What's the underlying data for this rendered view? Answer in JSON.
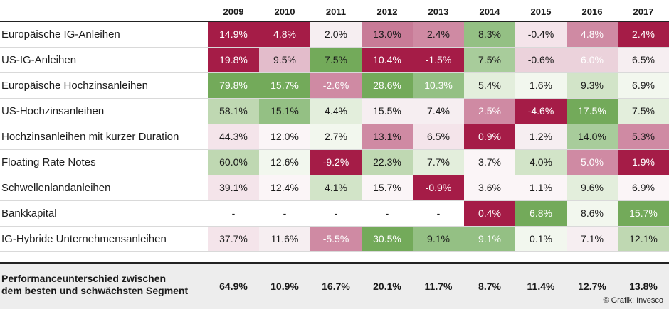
{
  "chart_data": {
    "type": "table",
    "columns": [
      "2009",
      "2010",
      "2011",
      "2012",
      "2013",
      "2014",
      "2015",
      "2016",
      "2017"
    ],
    "rows": [
      {
        "label": "Europäische IG-Anleihen",
        "cells": [
          {
            "text": "14.9%",
            "bg": "#a51c47",
            "fg": "#ffffff"
          },
          {
            "text": "4.8%",
            "bg": "#a51c47",
            "fg": "#ffffff"
          },
          {
            "text": "2.0%",
            "bg": "#f6eef1",
            "fg": "#1a1a1a"
          },
          {
            "text": "13.0%",
            "bg": "#c87b97",
            "fg": "#1a1a1a"
          },
          {
            "text": "2.4%",
            "bg": "#cf8aa3",
            "fg": "#1a1a1a"
          },
          {
            "text": "8.3%",
            "bg": "#94c084",
            "fg": "#1a1a1a"
          },
          {
            "text": "-0.4%",
            "bg": "#f4e4ea",
            "fg": "#1a1a1a"
          },
          {
            "text": "4.8%",
            "bg": "#cf8aa3",
            "fg": "#ffffff"
          },
          {
            "text": "2.4%",
            "bg": "#a51c47",
            "fg": "#ffffff"
          }
        ]
      },
      {
        "label": "US-IG-Anleihen",
        "cells": [
          {
            "text": "19.8%",
            "bg": "#a51c47",
            "fg": "#ffffff"
          },
          {
            "text": "9.5%",
            "bg": "#e3bccb",
            "fg": "#1a1a1a"
          },
          {
            "text": "7.5%",
            "bg": "#73aa5a",
            "fg": "#1a1a1a"
          },
          {
            "text": "10.4%",
            "bg": "#a51c47",
            "fg": "#ffffff"
          },
          {
            "text": "-1.5%",
            "bg": "#a51c47",
            "fg": "#ffffff"
          },
          {
            "text": "7.5%",
            "bg": "#a8cc9b",
            "fg": "#1a1a1a"
          },
          {
            "text": "-0.6%",
            "bg": "#ebd2db",
            "fg": "#1a1a1a"
          },
          {
            "text": "6.0%",
            "bg": "#ebd2db",
            "fg": "#ffffff"
          },
          {
            "text": "6.5%",
            "bg": "#f6eef1",
            "fg": "#1a1a1a"
          }
        ]
      },
      {
        "label": "Europäische Hochzinsanleihen",
        "cells": [
          {
            "text": "79.8%",
            "bg": "#73aa5a",
            "fg": "#ffffff"
          },
          {
            "text": "15.7%",
            "bg": "#73aa5a",
            "fg": "#ffffff"
          },
          {
            "text": "-2.6%",
            "bg": "#cf8aa3",
            "fg": "#ffffff"
          },
          {
            "text": "28.6%",
            "bg": "#73aa5a",
            "fg": "#ffffff"
          },
          {
            "text": "10.3%",
            "bg": "#94c084",
            "fg": "#ffffff"
          },
          {
            "text": "5.4%",
            "bg": "#e3eedc",
            "fg": "#1a1a1a"
          },
          {
            "text": "1.6%",
            "bg": "#f2f7ee",
            "fg": "#1a1a1a"
          },
          {
            "text": "9.3%",
            "bg": "#d2e4c8",
            "fg": "#1a1a1a"
          },
          {
            "text": "6.9%",
            "bg": "#f2f7ee",
            "fg": "#1a1a1a"
          }
        ]
      },
      {
        "label": "US-Hochzinsanleihen",
        "cells": [
          {
            "text": "58.1%",
            "bg": "#bfd8b2",
            "fg": "#1a1a1a"
          },
          {
            "text": "15.1%",
            "bg": "#94c084",
            "fg": "#1a1a1a"
          },
          {
            "text": "4.4%",
            "bg": "#e3eedc",
            "fg": "#1a1a1a"
          },
          {
            "text": "15.5%",
            "bg": "#f6eef1",
            "fg": "#1a1a1a"
          },
          {
            "text": "7.4%",
            "bg": "#f6eef1",
            "fg": "#1a1a1a"
          },
          {
            "text": "2.5%",
            "bg": "#cf8aa3",
            "fg": "#ffffff"
          },
          {
            "text": "-4.6%",
            "bg": "#a51c47",
            "fg": "#ffffff"
          },
          {
            "text": "17.5%",
            "bg": "#73aa5a",
            "fg": "#ffffff"
          },
          {
            "text": "7.5%",
            "bg": "#e3eedc",
            "fg": "#1a1a1a"
          }
        ]
      },
      {
        "label": "Hochzinsanleihen mit kurzer Duration",
        "cells": [
          {
            "text": "44.3%",
            "bg": "#f4e4ea",
            "fg": "#1a1a1a"
          },
          {
            "text": "12.0%",
            "bg": "#fbf5f7",
            "fg": "#1a1a1a"
          },
          {
            "text": "2.7%",
            "bg": "#f2f7ee",
            "fg": "#1a1a1a"
          },
          {
            "text": "13.1%",
            "bg": "#cf8aa3",
            "fg": "#1a1a1a"
          },
          {
            "text": "6.5%",
            "bg": "#f4e4ea",
            "fg": "#1a1a1a"
          },
          {
            "text": "0.9%",
            "bg": "#a51c47",
            "fg": "#ffffff"
          },
          {
            "text": "1.2%",
            "bg": "#f6eef1",
            "fg": "#1a1a1a"
          },
          {
            "text": "14.0%",
            "bg": "#a8cc9b",
            "fg": "#1a1a1a"
          },
          {
            "text": "5.3%",
            "bg": "#cf8aa3",
            "fg": "#1a1a1a"
          }
        ]
      },
      {
        "label": "Floating Rate Notes",
        "cells": [
          {
            "text": "60.0%",
            "bg": "#bfd8b2",
            "fg": "#1a1a1a"
          },
          {
            "text": "12.6%",
            "bg": "#f2f7ee",
            "fg": "#1a1a1a"
          },
          {
            "text": "-9.2%",
            "bg": "#a51c47",
            "fg": "#ffffff"
          },
          {
            "text": "22.3%",
            "bg": "#bfd8b2",
            "fg": "#1a1a1a"
          },
          {
            "text": "7.7%",
            "bg": "#e3eedc",
            "fg": "#1a1a1a"
          },
          {
            "text": "3.7%",
            "bg": "#fbf5f7",
            "fg": "#1a1a1a"
          },
          {
            "text": "4.0%",
            "bg": "#d2e4c8",
            "fg": "#1a1a1a"
          },
          {
            "text": "5.0%",
            "bg": "#cf8aa3",
            "fg": "#ffffff"
          },
          {
            "text": "1.9%",
            "bg": "#a51c47",
            "fg": "#ffffff"
          }
        ]
      },
      {
        "label": "Schwellenlandanleihen",
        "cells": [
          {
            "text": "39.1%",
            "bg": "#f4e4ea",
            "fg": "#1a1a1a"
          },
          {
            "text": "12.4%",
            "bg": "#fbf5f7",
            "fg": "#1a1a1a"
          },
          {
            "text": "4.1%",
            "bg": "#d2e4c8",
            "fg": "#1a1a1a"
          },
          {
            "text": "15.7%",
            "bg": "#fbf5f7",
            "fg": "#1a1a1a"
          },
          {
            "text": "-0.9%",
            "bg": "#a51c47",
            "fg": "#ffffff"
          },
          {
            "text": "3.6%",
            "bg": "#fbf5f7",
            "fg": "#1a1a1a"
          },
          {
            "text": "1.1%",
            "bg": "#fbf5f7",
            "fg": "#1a1a1a"
          },
          {
            "text": "9.6%",
            "bg": "#e3eedc",
            "fg": "#1a1a1a"
          },
          {
            "text": "6.9%",
            "bg": "#fbf5f7",
            "fg": "#1a1a1a"
          }
        ]
      },
      {
        "label": "Bankkapital",
        "cells": [
          {
            "text": "-",
            "bg": "#ffffff",
            "fg": "#1a1a1a"
          },
          {
            "text": "-",
            "bg": "#ffffff",
            "fg": "#1a1a1a"
          },
          {
            "text": "-",
            "bg": "#ffffff",
            "fg": "#1a1a1a"
          },
          {
            "text": "-",
            "bg": "#ffffff",
            "fg": "#1a1a1a"
          },
          {
            "text": "-",
            "bg": "#ffffff",
            "fg": "#1a1a1a"
          },
          {
            "text": "0.4%",
            "bg": "#a51c47",
            "fg": "#ffffff"
          },
          {
            "text": "6.8%",
            "bg": "#73aa5a",
            "fg": "#ffffff"
          },
          {
            "text": "8.6%",
            "bg": "#f2f7ee",
            "fg": "#1a1a1a"
          },
          {
            "text": "15.7%",
            "bg": "#73aa5a",
            "fg": "#ffffff"
          }
        ]
      },
      {
        "label": "IG-Hybride Unternehmensanleihen",
        "cells": [
          {
            "text": "37.7%",
            "bg": "#f4e4ea",
            "fg": "#1a1a1a"
          },
          {
            "text": "11.6%",
            "bg": "#f6eef1",
            "fg": "#1a1a1a"
          },
          {
            "text": "-5.5%",
            "bg": "#cf8aa3",
            "fg": "#ffffff"
          },
          {
            "text": "30.5%",
            "bg": "#73aa5a",
            "fg": "#ffffff"
          },
          {
            "text": "9.1%",
            "bg": "#94c084",
            "fg": "#1a1a1a"
          },
          {
            "text": "9.1%",
            "bg": "#94c084",
            "fg": "#ffffff"
          },
          {
            "text": "0.1%",
            "bg": "#f2f7ee",
            "fg": "#1a1a1a"
          },
          {
            "text": "7.1%",
            "bg": "#f6eef1",
            "fg": "#1a1a1a"
          },
          {
            "text": "12.1%",
            "bg": "#bfd8b2",
            "fg": "#1a1a1a"
          }
        ]
      }
    ],
    "summary": {
      "label": "Performanceunterschied zwischen\ndem besten und schwächsten Segment",
      "values": [
        "64.9%",
        "10.9%",
        "16.7%",
        "20.1%",
        "11.7%",
        "8.7%",
        "11.4%",
        "12.7%",
        "13.8%"
      ]
    }
  },
  "source": "© Grafik: Invesco"
}
